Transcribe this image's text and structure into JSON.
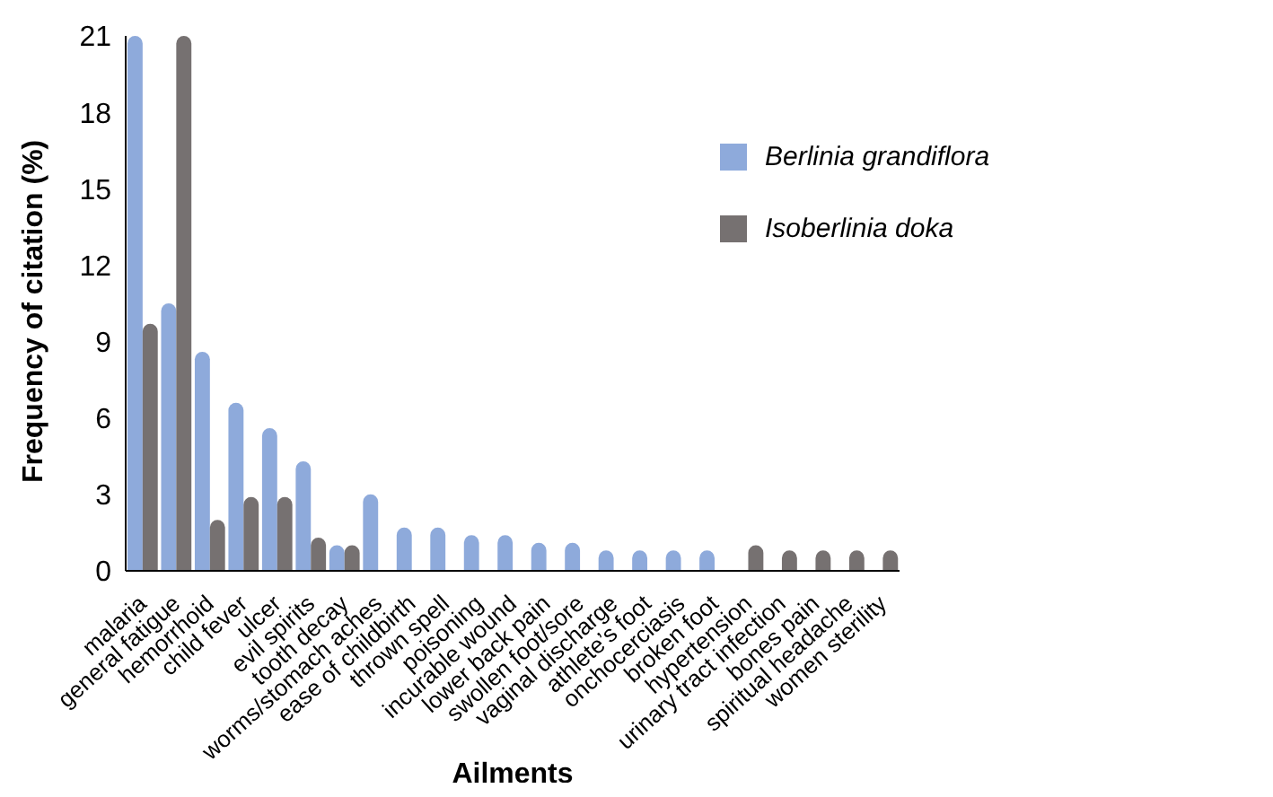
{
  "chart_data": {
    "type": "bar",
    "xlabel": "Ailments",
    "ylabel": "Frequency of citation (%)",
    "categories": [
      "malaria",
      "general fatigue",
      "hemorrhoid",
      "child fever",
      "ulcer",
      "evil spirits",
      "tooth decay",
      "worms/stomach aches",
      "ease of childbirth",
      "thrown spell",
      "poisoning",
      "incurable wound",
      "lower back pain",
      "swollen foot/sore",
      "vaginal discharge",
      "athlete’s foot",
      "onchocerciasis",
      "broken foot",
      "hypertension",
      "urinary tract infection",
      "bones pain",
      "spiritual headache",
      "women sterility"
    ],
    "series": [
      {
        "name": "Berlinia grandiflora",
        "color": "#8eaadb",
        "values": [
          21,
          10.5,
          8.6,
          6.6,
          5.6,
          4.3,
          1.0,
          3.0,
          1.7,
          1.7,
          1.4,
          1.4,
          1.1,
          1.1,
          0.8,
          0.8,
          0.8,
          0.8,
          null,
          null,
          null,
          null,
          null
        ]
      },
      {
        "name": "Isoberlinia doka",
        "color": "#767171",
        "values": [
          9.7,
          21,
          2.0,
          2.9,
          2.9,
          1.3,
          1.0,
          null,
          null,
          null,
          null,
          null,
          null,
          null,
          null,
          null,
          null,
          null,
          1.0,
          0.8,
          0.8,
          0.8,
          0.8
        ]
      }
    ],
    "ylim": [
      0,
      21
    ],
    "yticks": [
      0,
      3,
      6,
      9,
      12,
      15,
      18,
      21
    ],
    "legend": "top right"
  }
}
